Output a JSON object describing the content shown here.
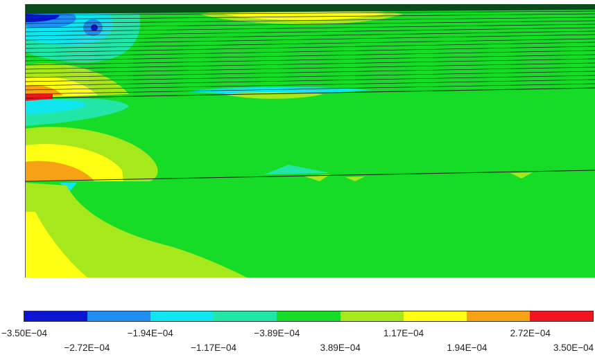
{
  "legend": {
    "colors": [
      "#0a14d2",
      "#1e8ff0",
      "#10e6f0",
      "#21e6a6",
      "#16dc28",
      "#a6e81c",
      "#ffff14",
      "#f7a114",
      "#f0141e"
    ],
    "tick_labels": [
      "−3.50E−04",
      "−2.72E−04",
      "−1.94E−04",
      "−1.17E−04",
      "−3.89E−04",
      "3.89E−04",
      "1.17E−04",
      "1.94E−04",
      "2.72E−04",
      "3.50E−04"
    ]
  },
  "field": {
    "background_color": "#16dc28",
    "layering_line_color": "#1a1a1a"
  }
}
